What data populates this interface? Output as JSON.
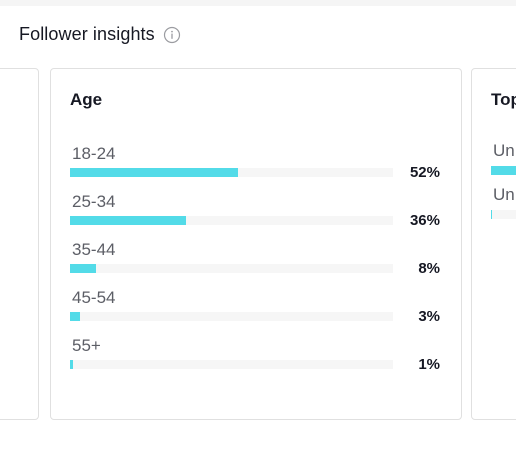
{
  "header": {
    "title": "Follower insights",
    "info_icon": "info-circle-icon"
  },
  "age_card": {
    "title": "Age",
    "rows": [
      {
        "label": "18-24",
        "percent_text": "52%",
        "value": 52
      },
      {
        "label": "25-34",
        "percent_text": "36%",
        "value": 36
      },
      {
        "label": "35-44",
        "percent_text": "8%",
        "value": 8
      },
      {
        "label": "45-54",
        "percent_text": "3%",
        "value": 3
      },
      {
        "label": "55+",
        "percent_text": "1%",
        "value": 1
      }
    ]
  },
  "right_card": {
    "title": "Top",
    "rows": [
      {
        "label": "Un",
        "value": 60
      },
      {
        "label": "Un",
        "value": 2
      }
    ]
  },
  "colors": {
    "bar_fill": "#53dbe8",
    "bar_track": "#f6f6f6",
    "card_border": "#e0e0e0"
  }
}
